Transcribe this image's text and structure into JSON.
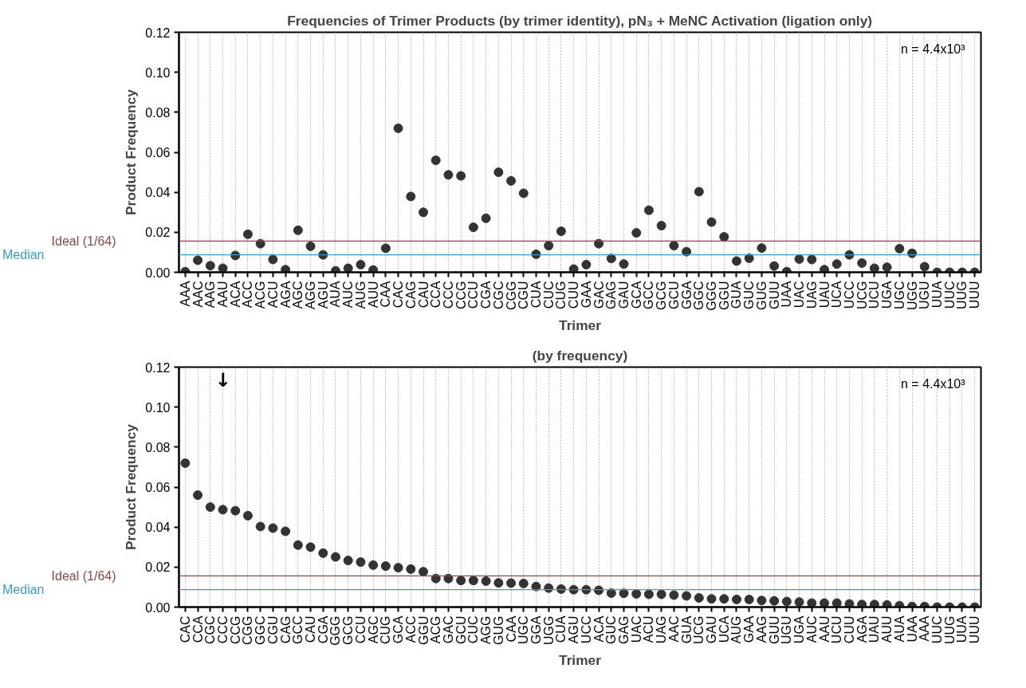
{
  "chart_data": [
    {
      "type": "scatter",
      "title": "Frequencies of Trimer Products (by trimer identity), pN₃ + MeNC Activation (ligation only)",
      "xlabel": "Trimer",
      "ylabel": "Product Frequency",
      "categories": [
        "AAA",
        "AAC",
        "AAG",
        "AAU",
        "ACA",
        "ACC",
        "ACG",
        "ACU",
        "AGA",
        "AGC",
        "AGG",
        "AGU",
        "AUA",
        "AUC",
        "AUG",
        "AUU",
        "CAA",
        "CAC",
        "CAG",
        "CAU",
        "CCA",
        "CCC",
        "CCG",
        "CCU",
        "CGA",
        "CGC",
        "CGG",
        "CGU",
        "CUA",
        "CUC",
        "CUG",
        "CUU",
        "GAA",
        "GAC",
        "GAG",
        "GAU",
        "GCA",
        "GCC",
        "GCG",
        "GCU",
        "GGA",
        "GGC",
        "GGG",
        "GGU",
        "GUA",
        "GUC",
        "GUG",
        "GUU",
        "UAA",
        "UAC",
        "UAG",
        "UAU",
        "UCA",
        "UCC",
        "UCG",
        "UCU",
        "UGA",
        "UGC",
        "UGG",
        "UGU",
        "UUA",
        "UUC",
        "UUG",
        "UUU"
      ],
      "series": [
        {
          "color": "#333333",
          "values": [
            0.0003,
            0.006,
            0.0033,
            0.002,
            0.0084,
            0.019,
            0.0143,
            0.0064,
            0.0013,
            0.021,
            0.013,
            0.0087,
            0.0007,
            0.002,
            0.0038,
            0.0011,
            0.012,
            0.072,
            0.0379,
            0.03,
            0.056,
            0.0487,
            0.0482,
            0.0225,
            0.027,
            0.05,
            0.0457,
            0.0395,
            0.009,
            0.0133,
            0.0205,
            0.0016,
            0.0038,
            0.0143,
            0.0069,
            0.0041,
            0.0197,
            0.031,
            0.0233,
            0.0133,
            0.0103,
            0.0403,
            0.0251,
            0.0177,
            0.0056,
            0.007,
            0.0121,
            0.0031,
            0.0003,
            0.0066,
            0.0064,
            0.0013,
            0.0041,
            0.0087,
            0.0046,
            0.002,
            0.0025,
            0.0118,
            0.0095,
            0.0028,
            0,
            0,
            0,
            0
          ]
        }
      ],
      "ylim": [
        0,
        0.12
      ],
      "yticks": [
        {
          "value": 0,
          "label": "0.00"
        },
        {
          "value": 0.02,
          "label": "0.02"
        },
        {
          "value": 0.04,
          "label": "0.04"
        },
        {
          "value": 0.06,
          "label": "0.06"
        },
        {
          "value": 0.08,
          "label": "0.08"
        },
        {
          "value": 0.1,
          "label": "0.10"
        },
        {
          "value": 0.12,
          "label": "0.12"
        }
      ],
      "grid": "x",
      "marker": "circle",
      "ref_lines": [
        {
          "axis": "y",
          "value": 0.0156,
          "label": "Ideal (1/64)",
          "color": "#8b4a4a"
        },
        {
          "axis": "y",
          "value": 0.0087,
          "label": "Median",
          "color": "#3a9cc8"
        }
      ],
      "annotations": [
        "n = 4.4x10³"
      ]
    },
    {
      "type": "scatter",
      "title": "(by frequency)",
      "xlabel": "Trimer",
      "ylabel": "Product Frequency",
      "categories": [
        "CAC",
        "CCA",
        "CGC",
        "CCC",
        "CCG",
        "CGG",
        "GGC",
        "CGU",
        "CAG",
        "GCC",
        "CAU",
        "CGA",
        "GGG",
        "GCG",
        "CCU",
        "AGC",
        "CUG",
        "GCA",
        "ACC",
        "GGU",
        "ACG",
        "GAC",
        "GCU",
        "CUC",
        "AGG",
        "GUG",
        "CAA",
        "UGC",
        "GGA",
        "UGG",
        "CUA",
        "AGU",
        "UCC",
        "ACA",
        "GUC",
        "GAG",
        "UAC",
        "ACU",
        "UAG",
        "AAC",
        "GUA",
        "UCG",
        "GAU",
        "UCA",
        "AUG",
        "GAA",
        "AAG",
        "GUU",
        "UGU",
        "UGA",
        "AUC",
        "AAU",
        "UCU",
        "CUU",
        "AGA",
        "UAU",
        "AUU",
        "AUA",
        "UAA",
        "AAA",
        "UUC",
        "UUG",
        "UUA",
        "UUU"
      ],
      "series": [
        {
          "color": "#333333",
          "values": [
            0.072,
            0.056,
            0.05,
            0.0487,
            0.0482,
            0.0457,
            0.0403,
            0.0395,
            0.0379,
            0.031,
            0.03,
            0.027,
            0.0251,
            0.0233,
            0.0225,
            0.021,
            0.0205,
            0.0197,
            0.019,
            0.0177,
            0.0143,
            0.0143,
            0.0133,
            0.0133,
            0.013,
            0.0121,
            0.012,
            0.0118,
            0.0103,
            0.0095,
            0.009,
            0.0087,
            0.0087,
            0.0084,
            0.007,
            0.0069,
            0.0066,
            0.0064,
            0.0064,
            0.006,
            0.0056,
            0.0046,
            0.0041,
            0.0041,
            0.0038,
            0.0038,
            0.0033,
            0.0031,
            0.0028,
            0.0025,
            0.002,
            0.002,
            0.002,
            0.0016,
            0.0013,
            0.0013,
            0.0011,
            0.0007,
            0.0003,
            0.0003,
            0,
            0,
            0,
            0
          ]
        }
      ],
      "ylim": [
        0,
        0.12
      ],
      "yticks": [
        {
          "value": 0,
          "label": "0.00"
        },
        {
          "value": 0.02,
          "label": "0.02"
        },
        {
          "value": 0.04,
          "label": "0.04"
        },
        {
          "value": 0.06,
          "label": "0.06"
        },
        {
          "value": 0.08,
          "label": "0.08"
        },
        {
          "value": 0.1,
          "label": "0.10"
        },
        {
          "value": 0.12,
          "label": "0.12"
        }
      ],
      "grid": "x",
      "marker": "circle",
      "ref_lines": [
        {
          "axis": "y",
          "value": 0.0156,
          "label": "Ideal (1/64)",
          "color": "#8b4a4a"
        },
        {
          "axis": "y",
          "value": 0.0087,
          "label": "Median",
          "color": "#3a9cc8"
        }
      ],
      "annotations": [
        "↓",
        "n = 4.4x10³"
      ]
    }
  ]
}
